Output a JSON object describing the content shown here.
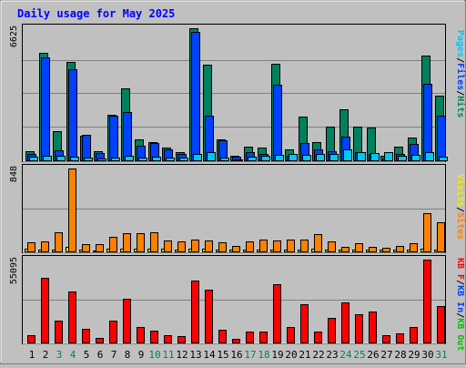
{
  "title": "Daily usage for May 2025",
  "colors": {
    "background": "#c0c0c0",
    "title": "#0000ff",
    "hits": "#00805c",
    "files": "#0040ff",
    "pages": "#00c8f0",
    "visits": "#f0f000",
    "sites": "#ff8000",
    "kb_in": "#0040ff",
    "kb_out": "#00c000",
    "kb_f": "#ff0000",
    "weekend": "#00805c"
  },
  "chart_data": [
    {
      "type": "bar",
      "panel": "top",
      "ymax_label": "6625",
      "ylim": [
        0,
        6625
      ],
      "categories": [
        "1",
        "2",
        "3",
        "4",
        "5",
        "6",
        "7",
        "8",
        "9",
        "10",
        "11",
        "12",
        "13",
        "14",
        "15",
        "16",
        "17",
        "18",
        "19",
        "20",
        "21",
        "22",
        "23",
        "24",
        "25",
        "26",
        "27",
        "28",
        "29",
        "30",
        "31"
      ],
      "weekend_days": [
        "3",
        "4",
        "10",
        "11",
        "17",
        "18",
        "24",
        "25",
        "31"
      ],
      "legend": [
        {
          "text": "Pages",
          "color": "#00c8f0"
        },
        {
          "text": "/",
          "color": "#000000"
        },
        {
          "text": "Files",
          "color": "#0040ff"
        },
        {
          "text": "/",
          "color": "#000000"
        },
        {
          "text": "Hits",
          "color": "#00805c"
        }
      ],
      "series": [
        {
          "name": "Hits",
          "values": [
            460,
            5400,
            1450,
            4930,
            1250,
            460,
            2270,
            3610,
            1030,
            930,
            640,
            410,
            6625,
            4810,
            1030,
            230,
            690,
            640,
            4860,
            550,
            2180,
            920,
            1700,
            2580,
            1680,
            1650,
            220,
            700,
            1130,
            5270,
            3230
          ]
        },
        {
          "name": "Files",
          "values": [
            320,
            5150,
            500,
            4560,
            1280,
            380,
            2230,
            2440,
            750,
            850,
            560,
            320,
            6440,
            2230,
            1000,
            170,
            410,
            330,
            3800,
            250,
            860,
            540,
            440,
            1200,
            430,
            310,
            110,
            340,
            810,
            3830,
            2230
          ]
        },
        {
          "name": "Pages",
          "values": [
            180,
            250,
            210,
            200,
            120,
            90,
            140,
            230,
            130,
            160,
            130,
            120,
            300,
            420,
            140,
            60,
            160,
            220,
            260,
            300,
            290,
            310,
            330,
            570,
            430,
            380,
            420,
            210,
            270,
            430,
            180
          ]
        }
      ]
    },
    {
      "type": "bar",
      "panel": "middle",
      "ymax_label": "848",
      "ylim": [
        0,
        848
      ],
      "categories": [
        "1",
        "2",
        "3",
        "4",
        "5",
        "6",
        "7",
        "8",
        "9",
        "10",
        "11",
        "12",
        "13",
        "14",
        "15",
        "16",
        "17",
        "18",
        "19",
        "20",
        "21",
        "22",
        "23",
        "24",
        "25",
        "26",
        "27",
        "28",
        "29",
        "30",
        "31"
      ],
      "legend": [
        {
          "text": "Visits",
          "color": "#f0f000"
        },
        {
          "text": "/",
          "color": "#000000"
        },
        {
          "text": "Sites",
          "color": "#ff8000"
        }
      ],
      "series": [
        {
          "name": "Visits",
          "values": [
            25,
            20,
            20,
            45,
            15,
            10,
            25,
            30,
            25,
            25,
            25,
            15,
            30,
            25,
            20,
            15,
            20,
            15,
            20,
            20,
            20,
            25,
            20,
            15,
            15,
            15,
            15,
            15,
            15,
            30,
            20
          ]
        },
        {
          "name": "Sites",
          "values": [
            90,
            100,
            200,
            848,
            70,
            70,
            150,
            190,
            190,
            200,
            110,
            100,
            120,
            110,
            90,
            60,
            100,
            120,
            110,
            120,
            120,
            180,
            100,
            50,
            80,
            50,
            40,
            60,
            80,
            390,
            300
          ]
        }
      ]
    },
    {
      "type": "bar",
      "panel": "bottom",
      "ymax_label": "55095",
      "ylim": [
        0,
        55095
      ],
      "categories": [
        "1",
        "2",
        "3",
        "4",
        "5",
        "6",
        "7",
        "8",
        "9",
        "10",
        "11",
        "12",
        "13",
        "14",
        "15",
        "16",
        "17",
        "18",
        "19",
        "20",
        "21",
        "22",
        "23",
        "24",
        "25",
        "26",
        "27",
        "28",
        "29",
        "30",
        "31"
      ],
      "legend": [
        {
          "text": "KB F",
          "color": "#ff0000"
        },
        {
          "text": "/",
          "color": "#000000"
        },
        {
          "text": "KB In",
          "color": "#0040ff"
        },
        {
          "text": "/",
          "color": "#000000"
        },
        {
          "text": "KB Out",
          "color": "#00c000"
        }
      ],
      "series": [
        {
          "name": "KB F",
          "values": [
            5000,
            43000,
            14500,
            34000,
            9000,
            3000,
            14500,
            29000,
            10500,
            8000,
            5000,
            4500,
            41000,
            35000,
            8500,
            2500,
            7000,
            7000,
            38500,
            10500,
            25500,
            7000,
            16500,
            26500,
            19000,
            20500,
            5000,
            6000,
            10500,
            55095,
            24000
          ]
        }
      ]
    }
  ]
}
